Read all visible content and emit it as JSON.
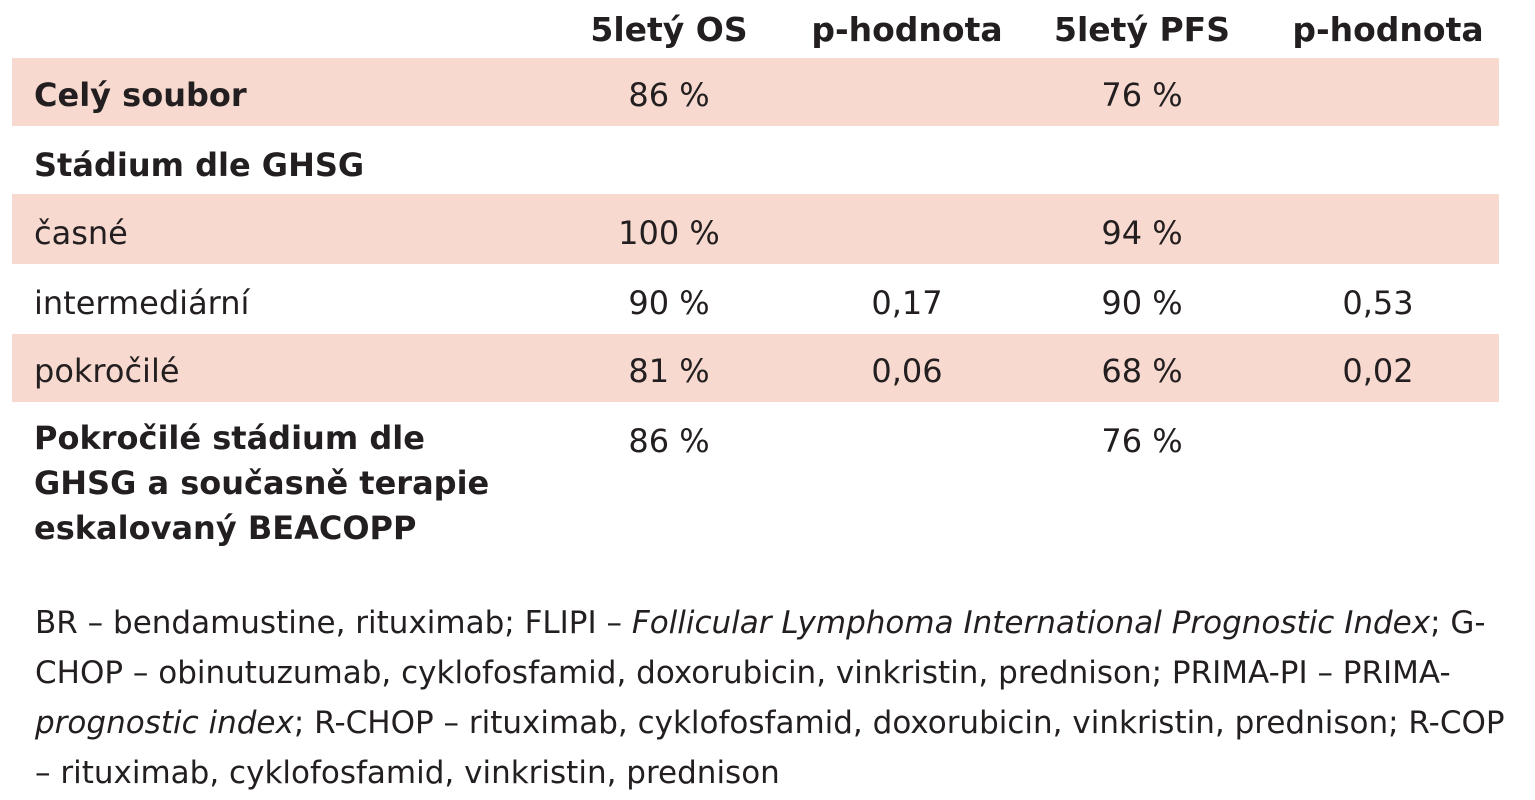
{
  "table": {
    "headers": [
      "",
      "5letý OS",
      "p-hodnota",
      "5letý PFS",
      "p-hodnota"
    ],
    "rows": [
      {
        "label": "Celý soubor",
        "os": "86 %",
        "p1": "",
        "pfs": "76 %",
        "p2": "",
        "bold": true,
        "shaded": true
      },
      {
        "label": "Stádium dle GHSG",
        "os": "",
        "p1": "",
        "pfs": "",
        "p2": "",
        "bold": true,
        "shaded": false
      },
      {
        "label": "časné",
        "os": "100 %",
        "p1": "",
        "pfs": "94 %",
        "p2": "",
        "bold": false,
        "shaded": true
      },
      {
        "label": "intermediární",
        "os": "90 %",
        "p1": "0,17",
        "pfs": "90 %",
        "p2": "0,53",
        "bold": false,
        "shaded": false
      },
      {
        "label": "pokročilé",
        "os": "81 %",
        "p1": "0,06",
        "pfs": "68 %",
        "p2": "0,02",
        "bold": false,
        "shaded": true
      },
      {
        "label": "Pokročilé stádium dle GHSG a současně terapie eskalovaný BEACOPP",
        "os": "86 %",
        "p1": "",
        "pfs": "76 %",
        "p2": "",
        "bold": true,
        "shaded": false
      }
    ]
  },
  "footnote": {
    "segments": [
      {
        "text": "BR – bendamustine, rituximab; FLIPI – ",
        "italic": false
      },
      {
        "text": "Follicular Lymphoma International Prognostic Index",
        "italic": true
      },
      {
        "text": "; G-CHOP – obinutuzumab, cyklofosfamid, doxorubicin, vinkristin, prednison; PRIMA-PI – PRIMA-",
        "italic": false
      },
      {
        "text": "prognostic index",
        "italic": true
      },
      {
        "text": "; R-CHOP – rituximab, cyklofosfamid, doxorubicin, vinkristin, prednison; R-COP – rituximab, cyklofosfamid, vinkristin, prednison",
        "italic": false
      }
    ]
  },
  "colors": {
    "shade": "#f7d9cf",
    "text": "#231f20"
  }
}
